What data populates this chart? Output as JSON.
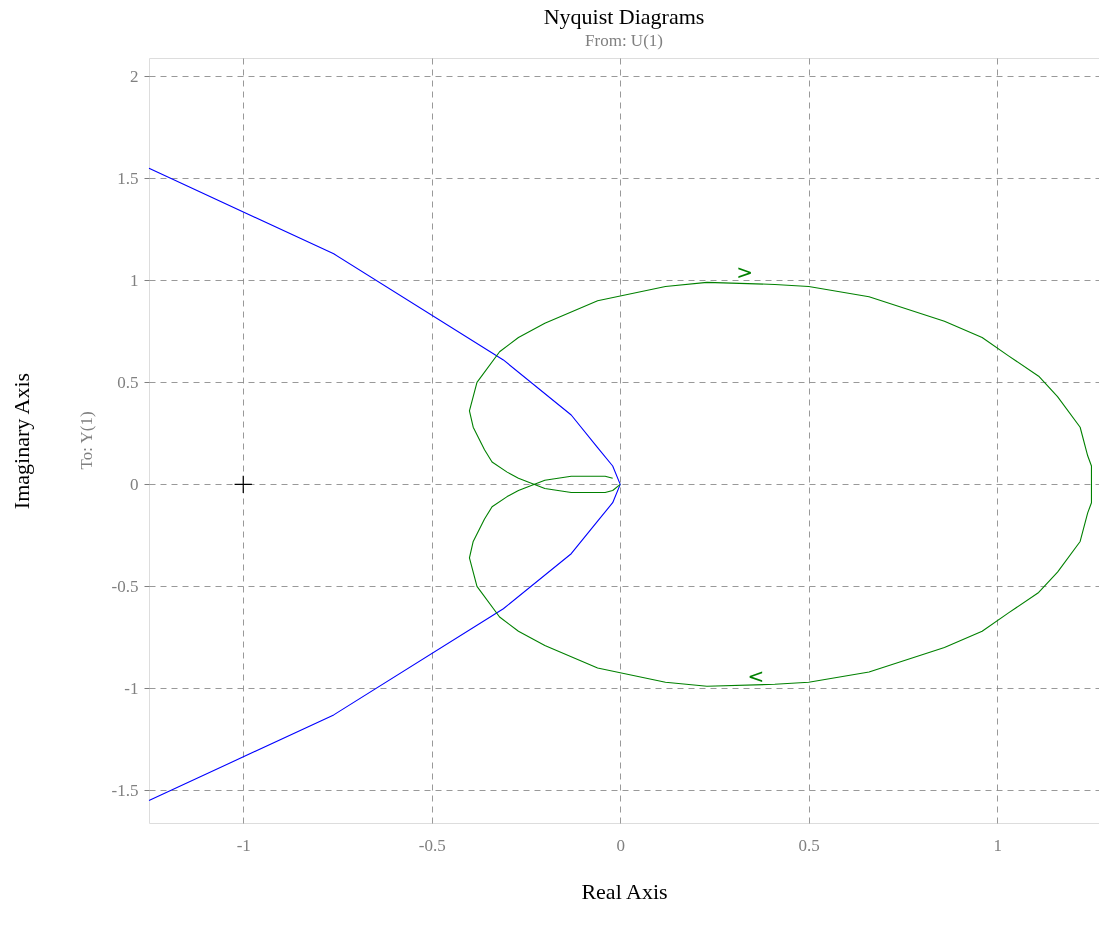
{
  "chart_data": {
    "type": "line",
    "title": "Nyquist Diagrams",
    "subtitle": "From: U(1)",
    "xlabel": "Real Axis",
    "ylabel": "Imaginary Axis",
    "annotations": [
      "To: Y(1)",
      {
        "text": ">",
        "x": 0.33,
        "y": 0.99
      },
      {
        "text": "<",
        "x": 0.36,
        "y": -0.99
      }
    ],
    "xlim": [
      -1.25,
      1.27
    ],
    "ylim": [
      -1.66,
      2.09
    ],
    "xticks": [
      -1,
      -0.5,
      0,
      0.5,
      1
    ],
    "yticks": [
      -1.5,
      -1,
      -0.5,
      0,
      0.5,
      1,
      1.5,
      2
    ],
    "grid": true,
    "line_style": "solid",
    "series": [
      {
        "color": "#0000ff",
        "x": [
          -1.25,
          -0.76,
          -0.31,
          -0.13,
          -0.06,
          -0.02,
          0,
          -0.02,
          -0.06,
          -0.13,
          -0.31,
          -0.76,
          -1.25
        ],
        "values": [
          1.55,
          1.13,
          0.61,
          0.34,
          0.18,
          0.09,
          0,
          -0.09,
          -0.18,
          -0.34,
          -0.61,
          -1.13,
          -1.55
        ]
      },
      {
        "color": "#008000",
        "x": [
          0,
          -0.02,
          -0.04,
          -0.13,
          -0.2,
          -0.27,
          -0.3,
          -0.34,
          -0.36,
          -0.39,
          -0.4,
          -0.38,
          -0.32,
          -0.27,
          -0.2,
          -0.06,
          0.12,
          0.23,
          0.41,
          0.5,
          0.66,
          0.86,
          0.96,
          1.03,
          1.11,
          1.16,
          1.22,
          1.24,
          1.25,
          1.25,
          1.25,
          1.24,
          1.22,
          1.16,
          1.11,
          1.03,
          0.96,
          0.86,
          0.66,
          0.5,
          0.41,
          0.23,
          0.12,
          -0.06,
          -0.2,
          -0.27,
          -0.32,
          -0.38,
          -0.4,
          -0.39,
          -0.36,
          -0.34,
          -0.3,
          -0.27,
          -0.2,
          -0.13,
          -0.04,
          -0.02
        ],
        "values": [
          0,
          -0.03,
          -0.04,
          -0.04,
          -0.02,
          0.03,
          0.06,
          0.11,
          0.17,
          0.28,
          0.36,
          0.5,
          0.65,
          0.72,
          0.79,
          0.9,
          0.97,
          0.99,
          0.98,
          0.97,
          0.92,
          0.8,
          0.72,
          0.63,
          0.53,
          0.43,
          0.28,
          0.14,
          0.09,
          0,
          -0.09,
          -0.14,
          -0.28,
          -0.43,
          -0.53,
          -0.63,
          -0.72,
          -0.8,
          -0.92,
          -0.97,
          -0.98,
          -0.99,
          -0.97,
          -0.9,
          -0.79,
          -0.72,
          -0.65,
          -0.5,
          -0.36,
          -0.28,
          -0.17,
          -0.11,
          -0.06,
          -0.03,
          0.02,
          0.04,
          0.04,
          0.03
        ]
      },
      {
        "type": "scatter",
        "marker": "cross",
        "color": "#000000",
        "x": [
          -1
        ],
        "values": [
          0
        ]
      }
    ]
  }
}
